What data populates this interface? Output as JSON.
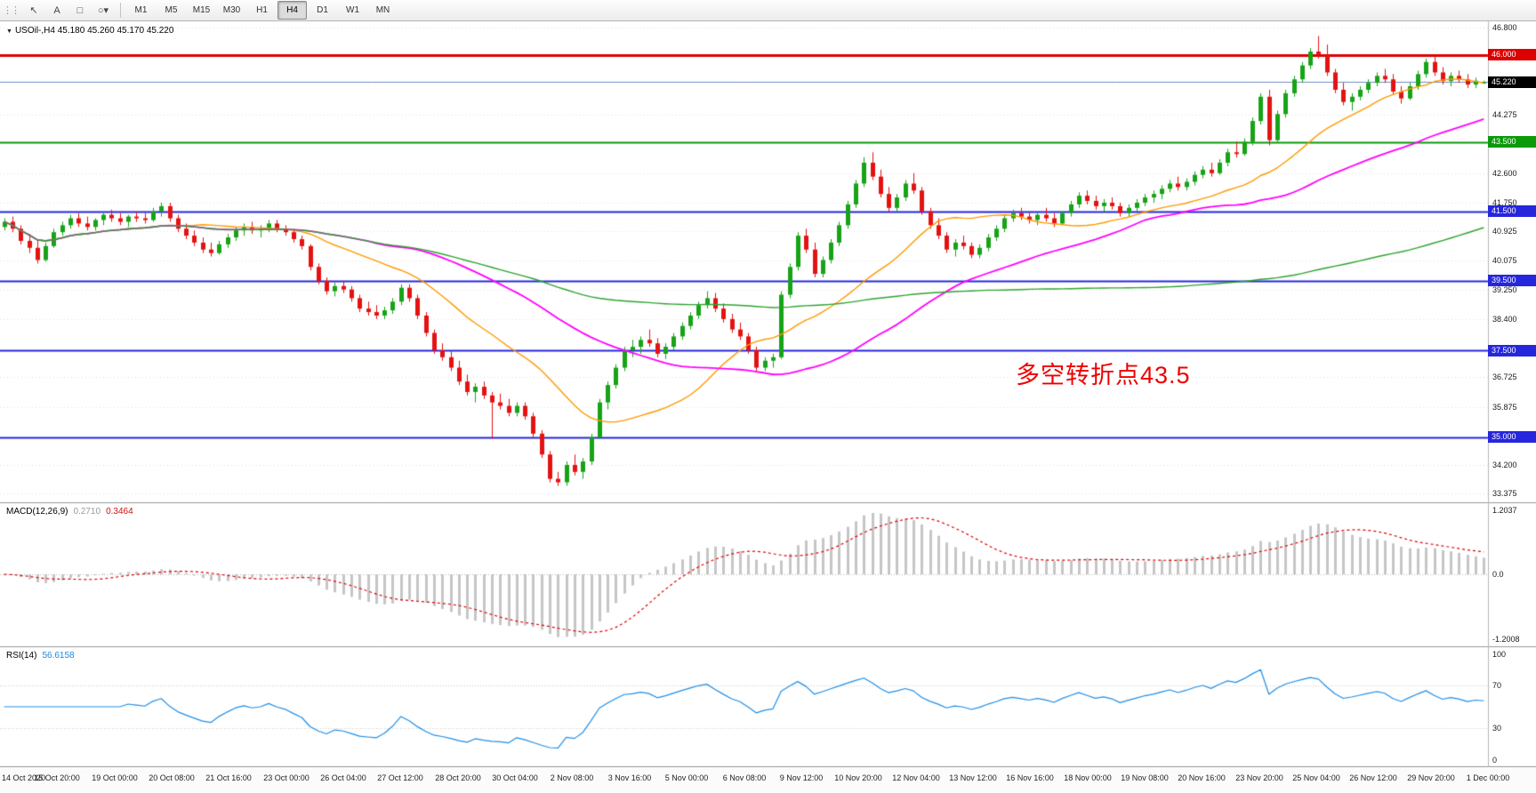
{
  "toolbar": {
    "tools": [
      {
        "name": "pointer-tool",
        "glyph": "↖"
      },
      {
        "name": "text-tool",
        "glyph": "A"
      },
      {
        "name": "rectangle-tool",
        "glyph": "□"
      },
      {
        "name": "shapes-dropdown",
        "glyph": "○",
        "caret": "▾"
      }
    ],
    "timeframes": [
      "M1",
      "M5",
      "M15",
      "M30",
      "H1",
      "H4",
      "D1",
      "W1",
      "MN"
    ],
    "active_timeframe": "H4"
  },
  "chart": {
    "symbol_ohlc_label": "USOil-,H4 45.180 45.260 45.170 45.220",
    "dropdown_glyph": "▼",
    "annotation": {
      "text": "多空转折点43.5",
      "color": "#ee0000"
    },
    "current_price": {
      "value": 45.22,
      "label": "45.220",
      "badge_color": "#000000",
      "line_color": "#6e90c0"
    },
    "colors": {
      "up": "#17a317",
      "down": "#e41212",
      "grid": "#e3e3e3",
      "background": "#ffffff"
    }
  },
  "indicators": {
    "macd": {
      "name": "MACD(12,26,9)",
      "value_main": "0.2710",
      "value_signal": "0.3464",
      "scale_top": "1.2037",
      "scale_mid": "0.0",
      "scale_bottom": "-1.2008",
      "histogram_color": "#c6c6c6",
      "signal_color": "#dd0000"
    },
    "rsi": {
      "name": "RSI(14)",
      "value": "56.6158",
      "scale": [
        "100",
        "70",
        "30",
        "0"
      ],
      "guide_levels": [
        70,
        30
      ],
      "line_color": "#1f8fe8"
    }
  },
  "chart_data": {
    "type": "candlestick",
    "symbol": "USOil-",
    "timeframe": "H4",
    "ohlc_display": {
      "open": "45.180",
      "high": "45.260",
      "low": "45.170",
      "close": "45.220"
    },
    "price_range": [
      33.15,
      46.97
    ],
    "price_axis_ticks": [
      "46.800",
      "44.275",
      "42.600",
      "41.750",
      "40.925",
      "40.075",
      "39.250",
      "38.400",
      "36.725",
      "35.875",
      "34.200",
      "33.375"
    ],
    "horizontal_lines": [
      {
        "value": 46.0,
        "label": "46.000",
        "color": "#dd0000",
        "width": 3
      },
      {
        "value": 43.5,
        "label": "43.500",
        "color": "#0a9a0a",
        "width": 2
      },
      {
        "value": 41.5,
        "label": "41.500",
        "color": "#2626dd",
        "width": 2
      },
      {
        "value": 39.5,
        "label": "39.500",
        "color": "#2626dd",
        "width": 2
      },
      {
        "value": 37.5,
        "label": "37.500",
        "color": "#2626dd",
        "width": 2
      },
      {
        "value": 35.0,
        "label": "35.000",
        "color": "#2626dd",
        "width": 2
      }
    ],
    "moving_averages": [
      {
        "name": "ma-fast",
        "period": 20,
        "color": "#ff9900",
        "width": 1.4
      },
      {
        "name": "ma-mid",
        "period": 45,
        "color": "#ff00ff",
        "width": 1.8
      },
      {
        "name": "ma-slow",
        "period": 120,
        "color": "#2fa32f",
        "width": 1.4
      }
    ],
    "sub_charts": [
      {
        "type": "macd",
        "params": [
          12,
          26,
          9
        ],
        "last_values": [
          0.271,
          0.3464
        ],
        "y_ticks": [
          1.2037,
          0.0,
          -1.2008
        ]
      },
      {
        "type": "rsi",
        "period": 14,
        "last_value": 56.6158,
        "y_ticks": [
          100,
          70,
          30,
          0
        ]
      }
    ],
    "time_labels": [
      "14 Oct 2020",
      "15 Oct 20:00",
      "19 Oct 00:00",
      "20 Oct 08:00",
      "21 Oct 16:00",
      "23 Oct 00:00",
      "26 Oct 04:00",
      "27 Oct 12:00",
      "28 Oct 20:00",
      "30 Oct 04:00",
      "2 Nov 08:00",
      "3 Nov 16:00",
      "5 Nov 00:00",
      "6 Nov 08:00",
      "9 Nov 12:00",
      "10 Nov 20:00",
      "12 Nov 04:00",
      "13 Nov 12:00",
      "16 Nov 16:00",
      "18 Nov 00:00",
      "19 Nov 08:00",
      "20 Nov 16:00",
      "23 Nov 20:00",
      "25 Nov 04:00",
      "26 Nov 12:00",
      "29 Nov 20:00",
      "1 Dec 00:00"
    ],
    "candles": [
      [
        41.05,
        41.3,
        40.95,
        41.2
      ],
      [
        41.2,
        41.35,
        40.9,
        41.0
      ],
      [
        41.0,
        41.1,
        40.55,
        40.65
      ],
      [
        40.65,
        40.85,
        40.3,
        40.45
      ],
      [
        40.45,
        40.7,
        40.0,
        40.1
      ],
      [
        40.1,
        40.6,
        40.05,
        40.5
      ],
      [
        40.5,
        41.0,
        40.45,
        40.9
      ],
      [
        40.9,
        41.2,
        40.8,
        41.1
      ],
      [
        41.1,
        41.4,
        41.0,
        41.3
      ],
      [
        41.3,
        41.45,
        41.05,
        41.15
      ],
      [
        41.15,
        41.35,
        40.95,
        41.05
      ],
      [
        41.05,
        41.3,
        40.95,
        41.25
      ],
      [
        41.25,
        41.5,
        41.1,
        41.4
      ],
      [
        41.4,
        41.55,
        41.2,
        41.3
      ],
      [
        41.3,
        41.45,
        41.1,
        41.2
      ],
      [
        41.2,
        41.4,
        41.05,
        41.35
      ],
      [
        41.35,
        41.5,
        41.2,
        41.3
      ],
      [
        41.3,
        41.45,
        41.15,
        41.25
      ],
      [
        41.25,
        41.6,
        41.2,
        41.5
      ],
      [
        41.5,
        41.75,
        41.35,
        41.65
      ],
      [
        41.65,
        41.75,
        41.2,
        41.3
      ],
      [
        41.3,
        41.4,
        40.9,
        41.0
      ],
      [
        41.0,
        41.15,
        40.7,
        40.8
      ],
      [
        40.8,
        40.95,
        40.5,
        40.6
      ],
      [
        40.6,
        40.75,
        40.3,
        40.4
      ],
      [
        40.4,
        40.6,
        40.2,
        40.3
      ],
      [
        40.3,
        40.65,
        40.25,
        40.55
      ],
      [
        40.55,
        40.85,
        40.45,
        40.75
      ],
      [
        40.75,
        41.05,
        40.65,
        40.95
      ],
      [
        40.95,
        41.15,
        40.8,
        41.05
      ],
      [
        41.05,
        41.2,
        40.85,
        40.95
      ],
      [
        40.95,
        41.1,
        40.75,
        41.0
      ],
      [
        41.0,
        41.25,
        40.9,
        41.15
      ],
      [
        41.15,
        41.25,
        40.9,
        41.0
      ],
      [
        41.0,
        41.1,
        40.8,
        40.9
      ],
      [
        40.9,
        41.0,
        40.6,
        40.7
      ],
      [
        40.7,
        40.8,
        40.4,
        40.5
      ],
      [
        40.5,
        40.55,
        39.8,
        39.9
      ],
      [
        39.9,
        40.0,
        39.4,
        39.5
      ],
      [
        39.5,
        39.6,
        39.1,
        39.2
      ],
      [
        39.2,
        39.45,
        39.05,
        39.35
      ],
      [
        39.35,
        39.5,
        39.15,
        39.25
      ],
      [
        39.25,
        39.35,
        38.9,
        39.0
      ],
      [
        39.0,
        39.1,
        38.6,
        38.7
      ],
      [
        38.7,
        38.9,
        38.5,
        38.6
      ],
      [
        38.6,
        38.8,
        38.4,
        38.5
      ],
      [
        38.5,
        38.75,
        38.4,
        38.65
      ],
      [
        38.65,
        39.0,
        38.55,
        38.9
      ],
      [
        38.9,
        39.4,
        38.8,
        39.3
      ],
      [
        39.3,
        39.4,
        38.9,
        39.0
      ],
      [
        39.0,
        39.1,
        38.4,
        38.5
      ],
      [
        38.5,
        38.6,
        37.9,
        38.0
      ],
      [
        38.0,
        38.1,
        37.4,
        37.5
      ],
      [
        37.5,
        37.7,
        37.2,
        37.3
      ],
      [
        37.3,
        37.5,
        36.9,
        37.0
      ],
      [
        37.0,
        37.2,
        36.5,
        36.6
      ],
      [
        36.6,
        36.8,
        36.2,
        36.3
      ],
      [
        36.3,
        36.55,
        36.0,
        36.45
      ],
      [
        36.45,
        36.6,
        36.1,
        36.2
      ],
      [
        36.2,
        36.3,
        34.95,
        36.0
      ],
      [
        36.0,
        36.25,
        35.8,
        35.9
      ],
      [
        35.9,
        36.1,
        35.6,
        35.7
      ],
      [
        35.7,
        36.0,
        35.6,
        35.9
      ],
      [
        35.9,
        36.0,
        35.5,
        35.6
      ],
      [
        35.6,
        35.7,
        35.0,
        35.1
      ],
      [
        35.1,
        35.2,
        34.4,
        34.5
      ],
      [
        34.5,
        34.6,
        33.7,
        33.8
      ],
      [
        33.8,
        34.0,
        33.6,
        33.7
      ],
      [
        33.7,
        34.3,
        33.6,
        34.2
      ],
      [
        34.2,
        34.5,
        33.9,
        34.0
      ],
      [
        34.0,
        34.4,
        33.8,
        34.3
      ],
      [
        34.3,
        35.1,
        34.2,
        35.0
      ],
      [
        35.0,
        36.1,
        34.95,
        36.0
      ],
      [
        36.0,
        36.6,
        35.8,
        36.5
      ],
      [
        36.5,
        37.1,
        36.4,
        37.0
      ],
      [
        37.0,
        37.6,
        36.9,
        37.5
      ],
      [
        37.5,
        37.8,
        37.3,
        37.6
      ],
      [
        37.6,
        37.9,
        37.4,
        37.8
      ],
      [
        37.8,
        38.1,
        37.6,
        37.7
      ],
      [
        37.7,
        37.85,
        37.3,
        37.4
      ],
      [
        37.4,
        37.7,
        37.25,
        37.6
      ],
      [
        37.6,
        38.0,
        37.5,
        37.9
      ],
      [
        37.9,
        38.3,
        37.8,
        38.2
      ],
      [
        38.2,
        38.6,
        38.1,
        38.5
      ],
      [
        38.5,
        38.9,
        38.4,
        38.8
      ],
      [
        38.8,
        39.2,
        38.7,
        39.0
      ],
      [
        39.0,
        39.15,
        38.6,
        38.7
      ],
      [
        38.7,
        38.85,
        38.3,
        38.4
      ],
      [
        38.4,
        38.55,
        38.0,
        38.1
      ],
      [
        38.1,
        38.3,
        37.8,
        37.9
      ],
      [
        37.9,
        38.0,
        37.4,
        37.5
      ],
      [
        37.5,
        37.6,
        36.9,
        37.0
      ],
      [
        37.0,
        37.3,
        36.9,
        37.2
      ],
      [
        37.2,
        37.4,
        37.0,
        37.3
      ],
      [
        37.3,
        39.2,
        37.25,
        39.1
      ],
      [
        39.1,
        40.0,
        39.0,
        39.9
      ],
      [
        39.9,
        40.9,
        39.8,
        40.8
      ],
      [
        40.8,
        41.0,
        40.3,
        40.4
      ],
      [
        40.4,
        40.6,
        39.6,
        39.7
      ],
      [
        39.7,
        40.2,
        39.6,
        40.1
      ],
      [
        40.1,
        40.7,
        40.0,
        40.6
      ],
      [
        40.6,
        41.2,
        40.5,
        41.1
      ],
      [
        41.1,
        41.8,
        41.0,
        41.7
      ],
      [
        41.7,
        42.4,
        41.6,
        42.3
      ],
      [
        42.3,
        43.06,
        42.2,
        42.9
      ],
      [
        42.9,
        43.2,
        42.4,
        42.5
      ],
      [
        42.5,
        42.7,
        41.9,
        42.0
      ],
      [
        42.0,
        42.2,
        41.5,
        41.6
      ],
      [
        41.6,
        42.0,
        41.5,
        41.9
      ],
      [
        41.9,
        42.4,
        41.8,
        42.3
      ],
      [
        42.3,
        42.6,
        42.0,
        42.1
      ],
      [
        42.1,
        42.2,
        41.4,
        41.5
      ],
      [
        41.5,
        41.6,
        41.0,
        41.1
      ],
      [
        41.1,
        41.3,
        40.7,
        40.8
      ],
      [
        40.8,
        40.9,
        40.3,
        40.4
      ],
      [
        40.4,
        40.7,
        40.2,
        40.6
      ],
      [
        40.6,
        40.8,
        40.4,
        40.5
      ],
      [
        40.5,
        40.6,
        40.15,
        40.25
      ],
      [
        40.25,
        40.55,
        40.15,
        40.45
      ],
      [
        40.45,
        40.85,
        40.35,
        40.75
      ],
      [
        40.75,
        41.1,
        40.65,
        41.0
      ],
      [
        41.0,
        41.4,
        40.9,
        41.3
      ],
      [
        41.3,
        41.55,
        41.2,
        41.45
      ],
      [
        41.45,
        41.6,
        41.25,
        41.35
      ],
      [
        41.35,
        41.5,
        41.15,
        41.25
      ],
      [
        41.25,
        41.45,
        41.1,
        41.4
      ],
      [
        41.4,
        41.6,
        41.2,
        41.3
      ],
      [
        41.3,
        41.45,
        41.05,
        41.15
      ],
      [
        41.15,
        41.5,
        41.1,
        41.45
      ],
      [
        41.45,
        41.8,
        41.35,
        41.7
      ],
      [
        41.7,
        42.05,
        41.6,
        41.95
      ],
      [
        41.95,
        42.1,
        41.7,
        41.8
      ],
      [
        41.8,
        41.95,
        41.55,
        41.65
      ],
      [
        41.65,
        41.85,
        41.5,
        41.75
      ],
      [
        41.75,
        41.9,
        41.55,
        41.65
      ],
      [
        41.65,
        41.75,
        41.35,
        41.45
      ],
      [
        41.45,
        41.7,
        41.35,
        41.6
      ],
      [
        41.6,
        41.85,
        41.5,
        41.75
      ],
      [
        41.75,
        42.0,
        41.65,
        41.9
      ],
      [
        41.9,
        42.1,
        41.75,
        42.0
      ],
      [
        42.0,
        42.25,
        41.85,
        42.15
      ],
      [
        42.15,
        42.4,
        42.05,
        42.3
      ],
      [
        42.3,
        42.5,
        42.1,
        42.2
      ],
      [
        42.2,
        42.45,
        42.1,
        42.35
      ],
      [
        42.35,
        42.65,
        42.25,
        42.55
      ],
      [
        42.55,
        42.8,
        42.45,
        42.7
      ],
      [
        42.7,
        42.9,
        42.5,
        42.6
      ],
      [
        42.6,
        43.0,
        42.55,
        42.9
      ],
      [
        42.9,
        43.3,
        42.8,
        43.2
      ],
      [
        43.2,
        43.5,
        43.05,
        43.15
      ],
      [
        43.15,
        43.6,
        43.1,
        43.5
      ],
      [
        43.5,
        44.2,
        43.4,
        44.1
      ],
      [
        44.1,
        44.9,
        44.0,
        44.8
      ],
      [
        44.8,
        45.0,
        43.4,
        43.55
      ],
      [
        43.55,
        44.4,
        43.5,
        44.3
      ],
      [
        44.3,
        45.0,
        44.2,
        44.9
      ],
      [
        44.9,
        45.4,
        44.8,
        45.3
      ],
      [
        45.3,
        45.8,
        45.2,
        45.7
      ],
      [
        45.7,
        46.2,
        45.6,
        46.1
      ],
      [
        46.1,
        46.55,
        45.9,
        46.0
      ],
      [
        46.0,
        46.3,
        45.4,
        45.5
      ],
      [
        45.5,
        45.6,
        44.9,
        45.0
      ],
      [
        45.0,
        45.2,
        44.55,
        44.65
      ],
      [
        44.65,
        44.9,
        44.4,
        44.8
      ],
      [
        44.8,
        45.1,
        44.7,
        45.0
      ],
      [
        45.0,
        45.3,
        44.9,
        45.2
      ],
      [
        45.2,
        45.5,
        45.1,
        45.4
      ],
      [
        45.4,
        45.6,
        45.2,
        45.3
      ],
      [
        45.3,
        45.45,
        44.85,
        44.95
      ],
      [
        44.95,
        45.1,
        44.6,
        44.75
      ],
      [
        44.75,
        45.2,
        44.7,
        45.1
      ],
      [
        45.1,
        45.55,
        45.0,
        45.45
      ],
      [
        45.45,
        45.9,
        45.35,
        45.8
      ],
      [
        45.8,
        45.95,
        45.4,
        45.5
      ],
      [
        45.5,
        45.65,
        45.15,
        45.25
      ],
      [
        45.25,
        45.5,
        45.1,
        45.4
      ],
      [
        45.4,
        45.55,
        45.2,
        45.3
      ],
      [
        45.3,
        45.45,
        45.05,
        45.15
      ],
      [
        45.15,
        45.35,
        45.05,
        45.26
      ],
      [
        45.18,
        45.26,
        45.17,
        45.22
      ]
    ]
  }
}
